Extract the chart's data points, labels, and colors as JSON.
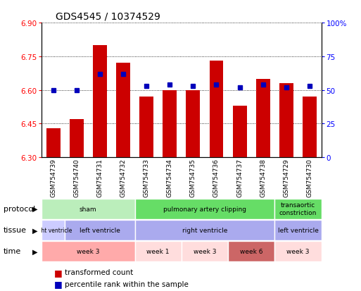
{
  "title": "GDS4545 / 10374529",
  "samples": [
    "GSM754739",
    "GSM754740",
    "GSM754731",
    "GSM754732",
    "GSM754733",
    "GSM754734",
    "GSM754735",
    "GSM754736",
    "GSM754737",
    "GSM754738",
    "GSM754729",
    "GSM754730"
  ],
  "bar_values": [
    6.43,
    6.47,
    6.8,
    6.72,
    6.57,
    6.6,
    6.6,
    6.73,
    6.53,
    6.65,
    6.63,
    6.57
  ],
  "percentile_values": [
    50,
    50,
    62,
    62,
    53,
    54,
    53,
    54,
    52,
    54,
    52,
    53
  ],
  "y_min": 6.3,
  "y_max": 6.9,
  "y_ticks": [
    6.3,
    6.45,
    6.6,
    6.75,
    6.9
  ],
  "y2_ticks": [
    0,
    25,
    50,
    75,
    100
  ],
  "bar_color": "#cc0000",
  "dot_color": "#0000bb",
  "bar_bottom": 6.3,
  "background_color": "#ffffff",
  "protocol_segments": [
    {
      "start": 0,
      "end": 4,
      "text": "sham",
      "color": "#bbeebb"
    },
    {
      "start": 4,
      "end": 10,
      "text": "pulmonary artery clipping",
      "color": "#66dd66"
    },
    {
      "start": 10,
      "end": 12,
      "text": "transaortic\nconstriction",
      "color": "#66dd66"
    }
  ],
  "tissue_segments": [
    {
      "start": 0,
      "end": 1,
      "text": "right ventricle",
      "color": "#ccccff"
    },
    {
      "start": 1,
      "end": 4,
      "text": "left ventricle",
      "color": "#aaaaee"
    },
    {
      "start": 4,
      "end": 10,
      "text": "right ventricle",
      "color": "#aaaaee"
    },
    {
      "start": 10,
      "end": 12,
      "text": "left ventricle",
      "color": "#aaaaee"
    }
  ],
  "time_segments": [
    {
      "start": 0,
      "end": 4,
      "text": "week 3",
      "color": "#ffaaaa"
    },
    {
      "start": 4,
      "end": 6,
      "text": "week 1",
      "color": "#ffdddd"
    },
    {
      "start": 6,
      "end": 8,
      "text": "week 3",
      "color": "#ffdddd"
    },
    {
      "start": 8,
      "end": 10,
      "text": "week 6",
      "color": "#cc6666"
    },
    {
      "start": 10,
      "end": 12,
      "text": "week 3",
      "color": "#ffdddd"
    }
  ],
  "row_labels": [
    "protocol",
    "tissue",
    "time"
  ],
  "legend_items": [
    {
      "color": "#cc0000",
      "label": "transformed count"
    },
    {
      "color": "#0000bb",
      "label": "percentile rank within the sample"
    }
  ]
}
